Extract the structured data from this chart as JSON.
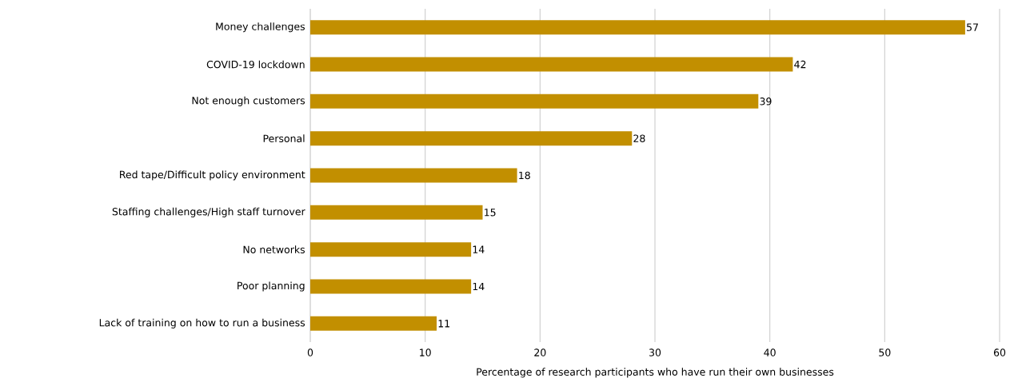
{
  "chart_data": {
    "type": "bar",
    "orientation": "horizontal",
    "categories": [
      "Money challenges",
      "COVID-19 lockdown",
      "Not enough customers",
      "Personal",
      "Red tape/Difficult policy environment",
      "Staffing challenges/High staff turnover",
      "No networks",
      "Poor planning",
      "Lack of training on how to run a business"
    ],
    "values": [
      57,
      42,
      39,
      28,
      18,
      15,
      14,
      14,
      11
    ],
    "color": "#c28f00",
    "xlabel": "Percentage of research participants who have run their own businesses",
    "xlim": [
      0,
      60
    ],
    "xticks": [
      0,
      10,
      20,
      30,
      40,
      50,
      60
    ],
    "grid": "x",
    "data_labels": true
  }
}
